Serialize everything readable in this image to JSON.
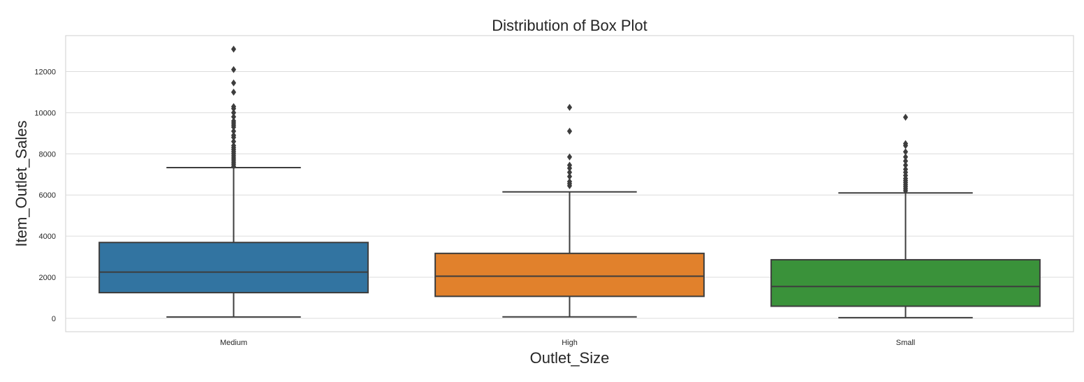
{
  "chart_data": {
    "type": "box",
    "title": "Distribution of Box Plot",
    "xlabel": "Outlet_Size",
    "ylabel": "Item_Outlet_Sales",
    "ylim": [
      -650,
      13750
    ],
    "yticks": [
      0,
      2000,
      4000,
      6000,
      8000,
      10000,
      12000
    ],
    "ytick_labels": [
      "0",
      "2000",
      "4000",
      "6000",
      "8000",
      "10000",
      "12000"
    ],
    "grid": true,
    "categories": [
      "Medium",
      "High",
      "Small"
    ],
    "series": [
      {
        "category": "Medium",
        "color": "#3274a1",
        "whisker_low": 69,
        "q1": 1250,
        "median": 2250,
        "q3": 3690,
        "whisker_high": 7330,
        "outliers": [
          7400,
          7500,
          7600,
          7700,
          7800,
          7900,
          8000,
          8100,
          8200,
          8300,
          8400,
          8600,
          8800,
          8900,
          9100,
          9300,
          9400,
          9500,
          9600,
          9800,
          10000,
          10200,
          10300,
          11000,
          11450,
          12100,
          13090
        ]
      },
      {
        "category": "High",
        "color": "#e1812c",
        "whisker_low": 73,
        "q1": 1070,
        "median": 2050,
        "q3": 3160,
        "whisker_high": 6150,
        "outliers": [
          6450,
          6550,
          6650,
          6900,
          7100,
          7300,
          7450,
          7850,
          9100,
          10260
        ]
      },
      {
        "category": "Small",
        "color": "#3a923a",
        "whisker_low": 33,
        "q1": 590,
        "median": 1550,
        "q3": 2850,
        "whisker_high": 6100,
        "outliers": [
          6200,
          6300,
          6400,
          6500,
          6600,
          6700,
          6800,
          6950,
          7100,
          7250,
          7450,
          7650,
          7850,
          8100,
          8400,
          8500,
          9780
        ]
      }
    ]
  }
}
